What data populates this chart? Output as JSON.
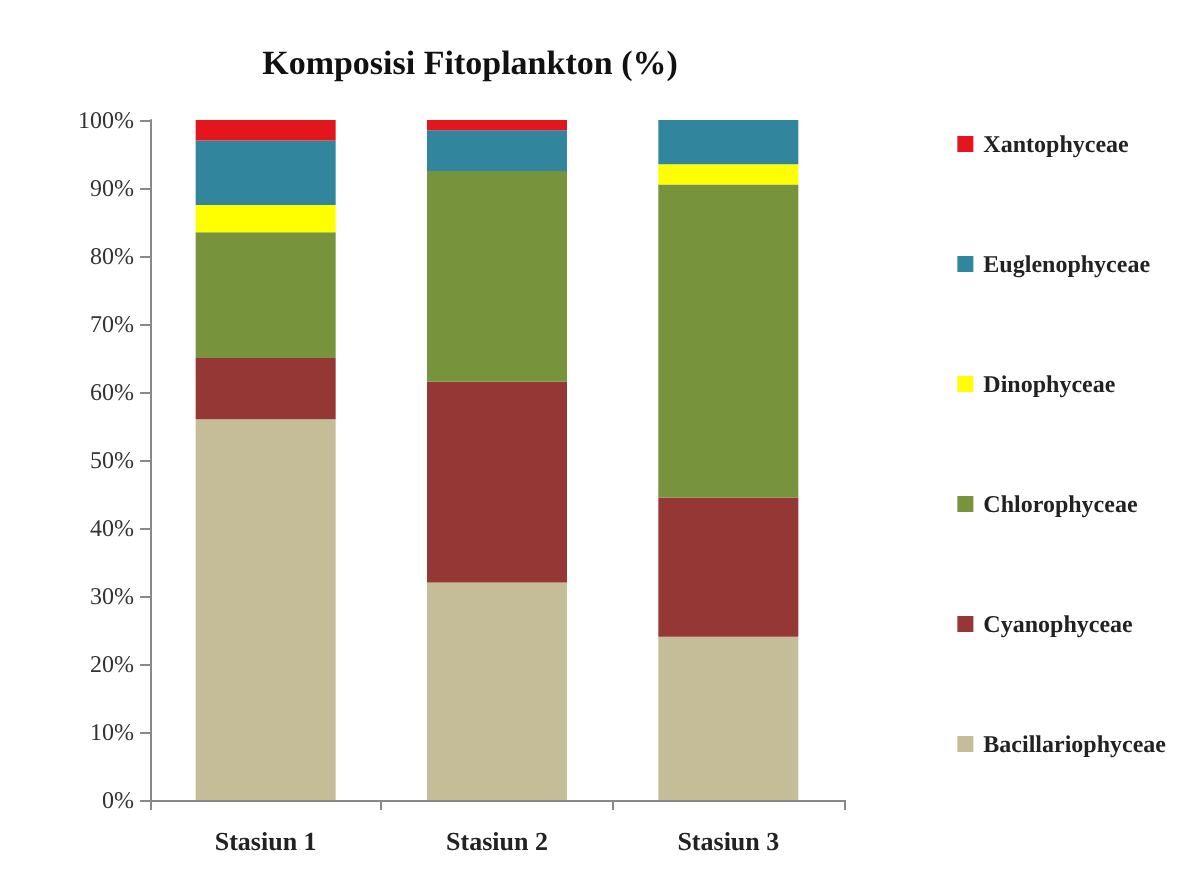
{
  "chart_data": {
    "type": "bar",
    "stacked": true,
    "title": "Komposisi Fitoplankton (%)",
    "categories": [
      "Stasiun 1",
      "Stasiun 2",
      "Stasiun 3"
    ],
    "series": [
      {
        "name": "Bacillariophyceae",
        "color": "#c4bd97",
        "values": [
          56,
          32,
          24
        ]
      },
      {
        "name": "Cyanophyceae",
        "color": "#953735",
        "values": [
          9,
          29.5,
          20.5
        ]
      },
      {
        "name": "Chlorophyceae",
        "color": "#77933c",
        "values": [
          18.5,
          31,
          46
        ]
      },
      {
        "name": "Dinophyceae",
        "color": "#ffff00",
        "values": [
          4,
          0,
          3
        ]
      },
      {
        "name": "Euglenophyceae",
        "color": "#31859c",
        "values": [
          9.5,
          6,
          6.5
        ]
      },
      {
        "name": "Xantophyceae",
        "color": "#e3161d",
        "values": [
          3,
          1.5,
          0
        ]
      }
    ],
    "ylim": [
      0,
      100
    ],
    "yticks": [
      {
        "value": 0,
        "label": "0%"
      },
      {
        "value": 10,
        "label": "10%"
      },
      {
        "value": 20,
        "label": "20%"
      },
      {
        "value": 30,
        "label": "30%"
      },
      {
        "value": 40,
        "label": "40%"
      },
      {
        "value": 50,
        "label": "50%"
      },
      {
        "value": 60,
        "label": "60%"
      },
      {
        "value": 70,
        "label": "70%"
      },
      {
        "value": 80,
        "label": "80%"
      },
      {
        "value": 90,
        "label": "90%"
      },
      {
        "value": 100,
        "label": "100%"
      }
    ],
    "grid": false,
    "legend": "right"
  }
}
